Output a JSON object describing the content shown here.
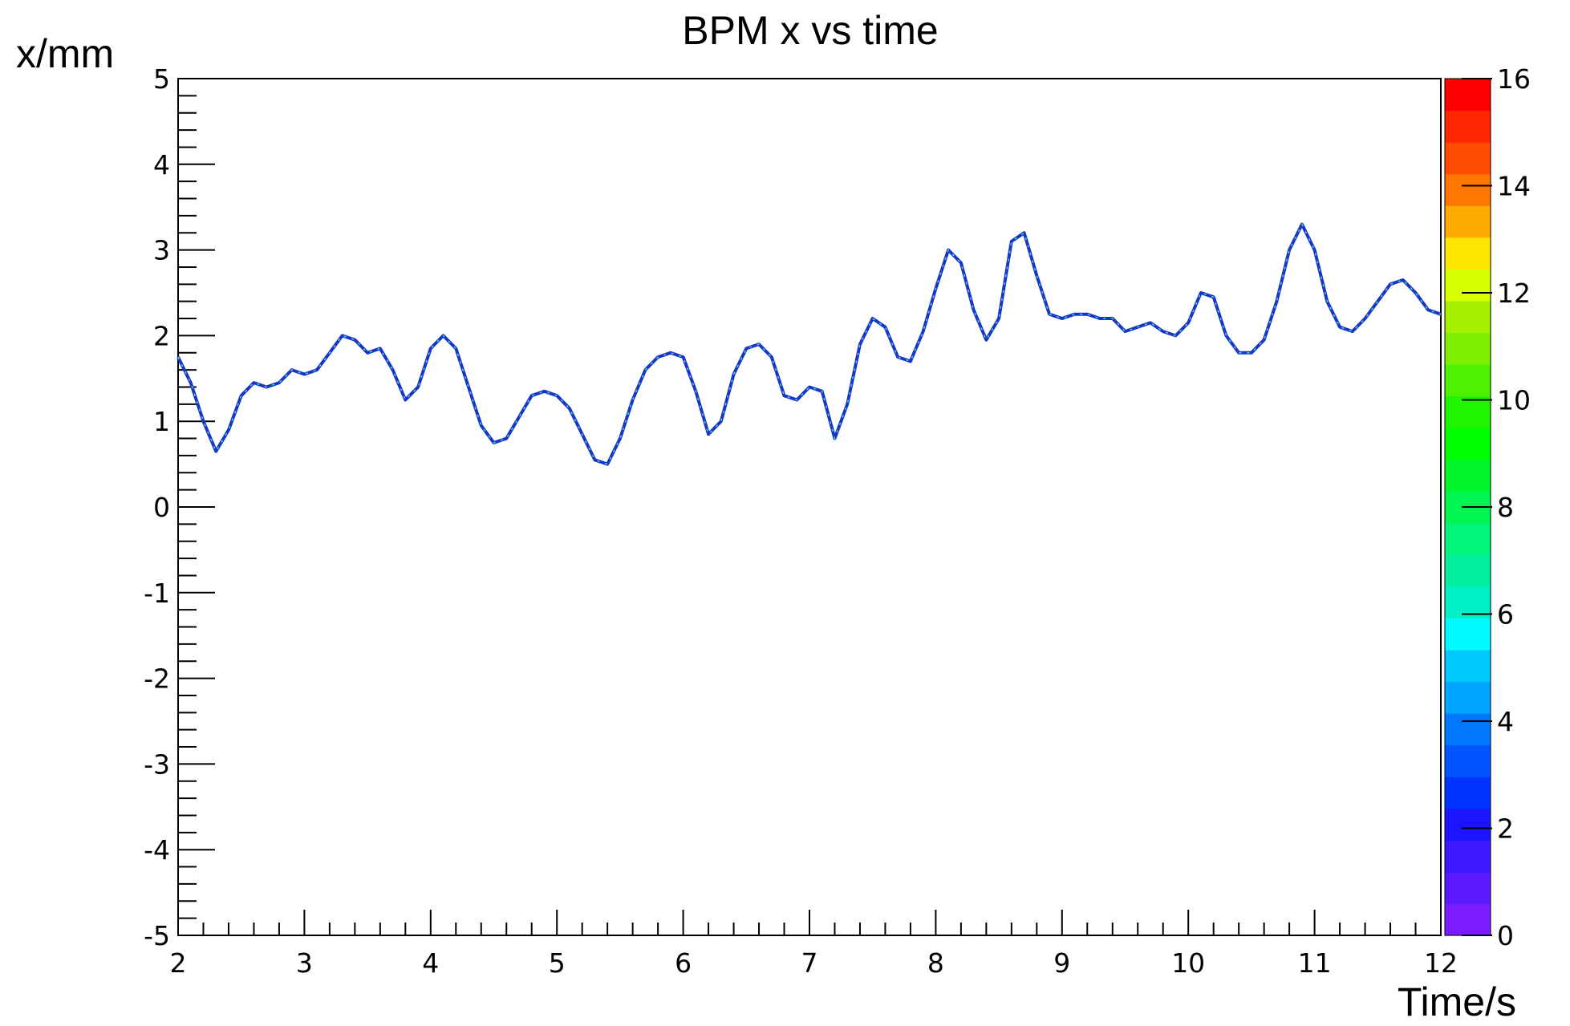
{
  "chart_data": {
    "type": "line",
    "title": "BPM x vs time",
    "xlabel": "Time/s",
    "ylabel": "x/mm",
    "xlim": [
      2,
      12
    ],
    "ylim": [
      -5,
      5
    ],
    "xticks": [
      "2",
      "3",
      "4",
      "5",
      "6",
      "7",
      "8",
      "9",
      "10",
      "11",
      "12"
    ],
    "yticks": [
      "-5",
      "-4",
      "-3",
      "-2",
      "-1",
      "0",
      "1",
      "2",
      "3",
      "4",
      "5"
    ],
    "colorbar": {
      "range": [
        0,
        16
      ],
      "ticks": [
        "0",
        "2",
        "4",
        "6",
        "8",
        "10",
        "12",
        "14",
        "16"
      ],
      "colors": [
        "#7b1bff",
        "#5c1bff",
        "#3c17ff",
        "#1c14ff",
        "#0033ff",
        "#0055ff",
        "#0077ff",
        "#00a5ff",
        "#00c8ff",
        "#00fbff",
        "#00f0c8",
        "#00f0a0",
        "#00f57b",
        "#00f550",
        "#00f52d",
        "#00ff00",
        "#20f500",
        "#4cf200",
        "#7cf000",
        "#a4f000",
        "#d7ff00",
        "#ffe600",
        "#ffaa00",
        "#ff7700",
        "#ff4c00",
        "#ff2600",
        "#ff0000"
      ]
    },
    "line_color": "#1a33cc",
    "highlight_color": "#3fe0b0",
    "series": [
      {
        "x": [
          2.0,
          2.1,
          2.2,
          2.3,
          2.4,
          2.5,
          2.6,
          2.7,
          2.8,
          2.9,
          3.0,
          3.1,
          3.2,
          3.3,
          3.4,
          3.5,
          3.6,
          3.7,
          3.8,
          3.9,
          4.0,
          4.1,
          4.2,
          4.3,
          4.4,
          4.5,
          4.6,
          4.7,
          4.8,
          4.9,
          5.0,
          5.1,
          5.2,
          5.3,
          5.4,
          5.5,
          5.6,
          5.7,
          5.8,
          5.9,
          6.0,
          6.1,
          6.2,
          6.3,
          6.4,
          6.5,
          6.6,
          6.7,
          6.8,
          6.9,
          7.0,
          7.1,
          7.2,
          7.3,
          7.4,
          7.5,
          7.6,
          7.7,
          7.8,
          7.9,
          8.0,
          8.1,
          8.2,
          8.3,
          8.4,
          8.5,
          8.6,
          8.7,
          8.8,
          8.9,
          9.0,
          9.1,
          9.2,
          9.3,
          9.4,
          9.5,
          9.6,
          9.7,
          9.8,
          9.9,
          10.0,
          10.1,
          10.2,
          10.3,
          10.4,
          10.5,
          10.6,
          10.7,
          10.8,
          10.9,
          11.0,
          11.1,
          11.2,
          11.3,
          11.4,
          11.5,
          11.6,
          11.7,
          11.8,
          11.9,
          12.0
        ],
        "y": [
          1.75,
          1.45,
          1.0,
          0.65,
          0.9,
          1.3,
          1.45,
          1.4,
          1.45,
          1.6,
          1.55,
          1.6,
          1.8,
          2.0,
          1.95,
          1.8,
          1.85,
          1.6,
          1.25,
          1.4,
          1.85,
          2.0,
          1.85,
          1.4,
          0.95,
          0.75,
          0.8,
          1.05,
          1.3,
          1.35,
          1.3,
          1.15,
          0.85,
          0.55,
          0.5,
          0.8,
          1.25,
          1.6,
          1.75,
          1.8,
          1.75,
          1.35,
          0.85,
          1.0,
          1.55,
          1.85,
          1.9,
          1.75,
          1.3,
          1.25,
          1.4,
          1.35,
          0.8,
          1.2,
          1.9,
          2.2,
          2.1,
          1.75,
          1.7,
          2.05,
          2.55,
          3.0,
          2.85,
          2.3,
          1.95,
          2.2,
          3.1,
          3.2,
          2.7,
          2.25,
          2.2,
          2.25,
          2.25,
          2.2,
          2.2,
          2.05,
          2.1,
          2.15,
          2.05,
          2.0,
          2.15,
          2.5,
          2.45,
          2.0,
          1.8,
          1.8,
          1.95,
          2.4,
          3.0,
          3.3,
          3.0,
          2.4,
          2.1,
          2.05,
          2.2,
          2.4,
          2.6,
          2.65,
          2.5,
          2.3,
          2.25
        ]
      }
    ]
  }
}
